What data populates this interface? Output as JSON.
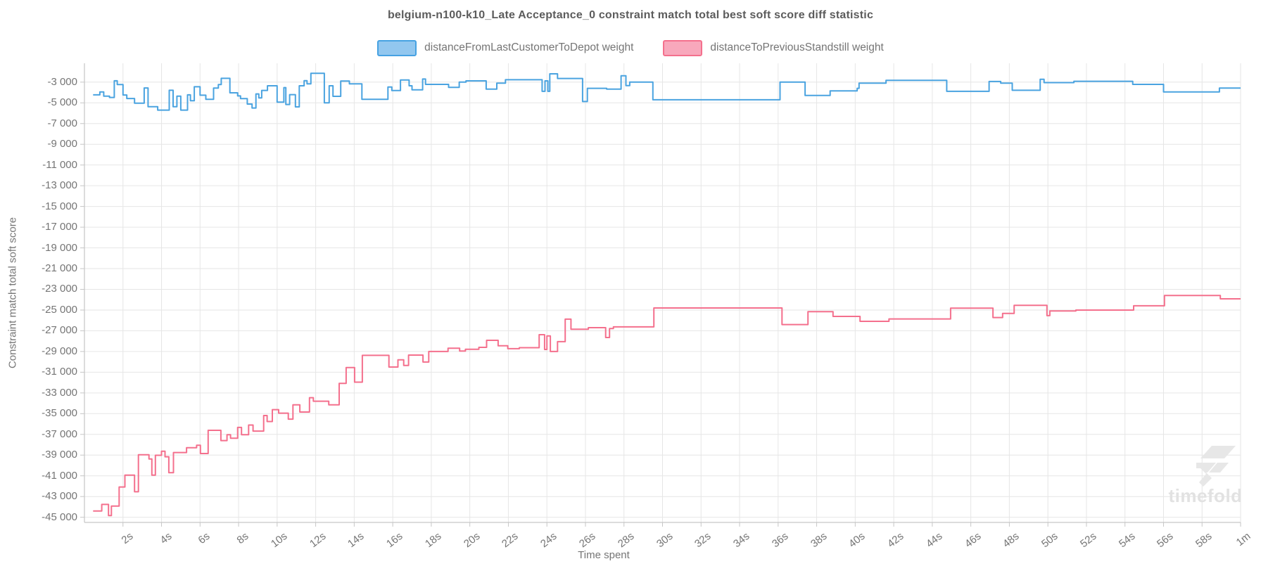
{
  "title": "belgium-n100-k10_Late Acceptance_0 constraint match total best soft score diff statistic",
  "watermark": "timefold",
  "legend": [
    {
      "label": "distanceFromLastCustomerToDepot weight",
      "fill": "#92c7ef",
      "border": "#46a2e2"
    },
    {
      "label": "distanceToPreviousStandstill weight",
      "fill": "#f8a8bc",
      "border": "#f4708d"
    }
  ],
  "x_axis": {
    "title": "Time spent",
    "tick_labels": [
      "2s",
      "4s",
      "6s",
      "8s",
      "10s",
      "12s",
      "14s",
      "16s",
      "18s",
      "20s",
      "22s",
      "24s",
      "26s",
      "28s",
      "30s",
      "32s",
      "34s",
      "36s",
      "38s",
      "40s",
      "42s",
      "44s",
      "46s",
      "48s",
      "50s",
      "52s",
      "54s",
      "56s",
      "58s",
      "1m"
    ]
  },
  "y_axis": {
    "title": "Constraint match total soft score",
    "tick_labels": [
      "-3 000",
      "-5 000",
      "-7 000",
      "-9 000",
      "-11 000",
      "-13 000",
      "-15 000",
      "-17 000",
      "-19 000",
      "-21 000",
      "-23 000",
      "-25 000",
      "-27 000",
      "-29 000",
      "-31 000",
      "-33 000",
      "-35 000",
      "-37 000",
      "-39 000",
      "-41 000",
      "-43 000",
      "-45 000"
    ]
  },
  "chart_data": {
    "type": "line",
    "step": true,
    "title": "belgium-n100-k10_Late Acceptance_0 constraint match total best soft score diff statistic",
    "xlabel": "Time spent",
    "ylabel": "Constraint match total soft score",
    "x_unit": "seconds",
    "xlim": [
      0,
      60
    ],
    "ylim": [
      -45600,
      -2200
    ],
    "y_tick_step": 2000,
    "x_tick_step_seconds": 2,
    "grid": true,
    "legend_position": "top",
    "colors": {
      "grid": "#e6e6e6",
      "axis": "#c6c6c6",
      "tick_text": "#757575",
      "title_text": "#5c5c5c",
      "watermark": "#e7e7e7"
    },
    "series": [
      {
        "name": "distanceFromLastCustomerToDepot weight",
        "color": "#4aa3e0",
        "points": [
          [
            0.45,
            -4230
          ],
          [
            0.8,
            -3950
          ],
          [
            1.0,
            -4350
          ],
          [
            1.3,
            -4480
          ],
          [
            1.55,
            -2870
          ],
          [
            1.7,
            -3230
          ],
          [
            2.0,
            -4240
          ],
          [
            2.2,
            -4580
          ],
          [
            2.6,
            -5030
          ],
          [
            3.1,
            -3560
          ],
          [
            3.3,
            -5370
          ],
          [
            3.8,
            -5700
          ],
          [
            4.4,
            -3790
          ],
          [
            4.6,
            -5370
          ],
          [
            4.8,
            -4350
          ],
          [
            5.0,
            -5700
          ],
          [
            5.35,
            -4230
          ],
          [
            5.5,
            -4800
          ],
          [
            5.7,
            -3450
          ],
          [
            6.0,
            -4260
          ],
          [
            6.3,
            -4660
          ],
          [
            6.7,
            -3570
          ],
          [
            6.95,
            -3230
          ],
          [
            7.1,
            -2630
          ],
          [
            7.55,
            -4030
          ],
          [
            7.95,
            -4330
          ],
          [
            8.1,
            -4590
          ],
          [
            8.45,
            -5120
          ],
          [
            8.7,
            -5500
          ],
          [
            8.9,
            -4140
          ],
          [
            9.05,
            -4520
          ],
          [
            9.2,
            -3800
          ],
          [
            9.5,
            -3350
          ],
          [
            10.0,
            -4930
          ],
          [
            10.35,
            -3530
          ],
          [
            10.45,
            -5160
          ],
          [
            10.65,
            -4210
          ],
          [
            10.95,
            -5390
          ],
          [
            11.15,
            -3350
          ],
          [
            11.4,
            -2860
          ],
          [
            11.55,
            -3170
          ],
          [
            11.75,
            -2150
          ],
          [
            12.45,
            -5000
          ],
          [
            12.7,
            -3350
          ],
          [
            12.9,
            -4370
          ],
          [
            13.3,
            -2900
          ],
          [
            13.75,
            -3170
          ],
          [
            14.4,
            -4660
          ],
          [
            15.75,
            -3470
          ],
          [
            15.95,
            -3810
          ],
          [
            16.4,
            -2790
          ],
          [
            16.85,
            -3350
          ],
          [
            17.0,
            -3740
          ],
          [
            17.55,
            -2700
          ],
          [
            17.7,
            -3220
          ],
          [
            18.9,
            -3510
          ],
          [
            19.45,
            -2990
          ],
          [
            19.8,
            -2880
          ],
          [
            20.85,
            -3670
          ],
          [
            21.4,
            -3100
          ],
          [
            21.85,
            -2770
          ],
          [
            23.75,
            -3890
          ],
          [
            23.9,
            -2880
          ],
          [
            24.05,
            -3890
          ],
          [
            24.15,
            -2200
          ],
          [
            24.55,
            -2650
          ],
          [
            25.85,
            -4870
          ],
          [
            26.1,
            -3600
          ],
          [
            27.1,
            -3670
          ],
          [
            27.85,
            -2380
          ],
          [
            28.1,
            -3330
          ],
          [
            28.3,
            -2990
          ],
          [
            29.5,
            -4700
          ],
          [
            36.1,
            -2990
          ],
          [
            37.4,
            -4280
          ],
          [
            38.7,
            -3850
          ],
          [
            40.1,
            -3600
          ],
          [
            40.2,
            -3100
          ],
          [
            41.6,
            -2830
          ],
          [
            44.75,
            -3890
          ],
          [
            46.95,
            -2940
          ],
          [
            47.55,
            -3100
          ],
          [
            48.15,
            -3790
          ],
          [
            49.6,
            -2720
          ],
          [
            49.8,
            -3050
          ],
          [
            51.35,
            -2920
          ],
          [
            54.4,
            -3215
          ],
          [
            56.0,
            -3940
          ],
          [
            58.9,
            -3575
          ]
        ]
      },
      {
        "name": "distanceToPreviousStandstill weight",
        "color": "#f4708d",
        "points": [
          [
            0.45,
            -44390
          ],
          [
            0.9,
            -43760
          ],
          [
            1.25,
            -44840
          ],
          [
            1.4,
            -43920
          ],
          [
            1.8,
            -42080
          ],
          [
            2.1,
            -40930
          ],
          [
            2.6,
            -42540
          ],
          [
            2.8,
            -38970
          ],
          [
            3.35,
            -39380
          ],
          [
            3.5,
            -40930
          ],
          [
            3.68,
            -39020
          ],
          [
            4.0,
            -38630
          ],
          [
            4.18,
            -39160
          ],
          [
            4.38,
            -40700
          ],
          [
            4.62,
            -38750
          ],
          [
            5.3,
            -38290
          ],
          [
            5.82,
            -38050
          ],
          [
            6.02,
            -38850
          ],
          [
            6.42,
            -36610
          ],
          [
            7.08,
            -37600
          ],
          [
            7.4,
            -37030
          ],
          [
            7.58,
            -37370
          ],
          [
            7.95,
            -36330
          ],
          [
            8.15,
            -37030
          ],
          [
            8.52,
            -36100
          ],
          [
            8.75,
            -36680
          ],
          [
            9.3,
            -35180
          ],
          [
            9.48,
            -35760
          ],
          [
            9.75,
            -34610
          ],
          [
            10.08,
            -34950
          ],
          [
            10.58,
            -35530
          ],
          [
            10.82,
            -34150
          ],
          [
            11.18,
            -34840
          ],
          [
            11.68,
            -33460
          ],
          [
            11.88,
            -33800
          ],
          [
            12.68,
            -34150
          ],
          [
            13.22,
            -32080
          ],
          [
            13.58,
            -30550
          ],
          [
            14.02,
            -31960
          ],
          [
            14.42,
            -29370
          ],
          [
            15.8,
            -30500
          ],
          [
            16.27,
            -29800
          ],
          [
            16.57,
            -30350
          ],
          [
            16.82,
            -29345
          ],
          [
            17.57,
            -30020
          ],
          [
            17.87,
            -29000
          ],
          [
            18.87,
            -28680
          ],
          [
            19.47,
            -28950
          ],
          [
            19.77,
            -28780
          ],
          [
            20.47,
            -28600
          ],
          [
            20.87,
            -27920
          ],
          [
            21.47,
            -28440
          ],
          [
            21.97,
            -28730
          ],
          [
            22.57,
            -28630
          ],
          [
            23.6,
            -27380
          ],
          [
            23.88,
            -28800
          ],
          [
            24.0,
            -27500
          ],
          [
            24.18,
            -29000
          ],
          [
            24.55,
            -28050
          ],
          [
            24.95,
            -25880
          ],
          [
            25.25,
            -26850
          ],
          [
            26.15,
            -26700
          ],
          [
            27.05,
            -27650
          ],
          [
            27.25,
            -26780
          ],
          [
            27.45,
            -26625
          ],
          [
            29.55,
            -24800
          ],
          [
            36.2,
            -26400
          ],
          [
            37.55,
            -25160
          ],
          [
            38.85,
            -25610
          ],
          [
            40.25,
            -26085
          ],
          [
            41.75,
            -25860
          ],
          [
            44.95,
            -24820
          ],
          [
            47.15,
            -25725
          ],
          [
            47.65,
            -25320
          ],
          [
            48.25,
            -24550
          ],
          [
            49.95,
            -25540
          ],
          [
            50.1,
            -25090
          ],
          [
            51.45,
            -25000
          ],
          [
            54.45,
            -24590
          ],
          [
            56.05,
            -23595
          ],
          [
            58.95,
            -23915
          ]
        ]
      }
    ]
  }
}
